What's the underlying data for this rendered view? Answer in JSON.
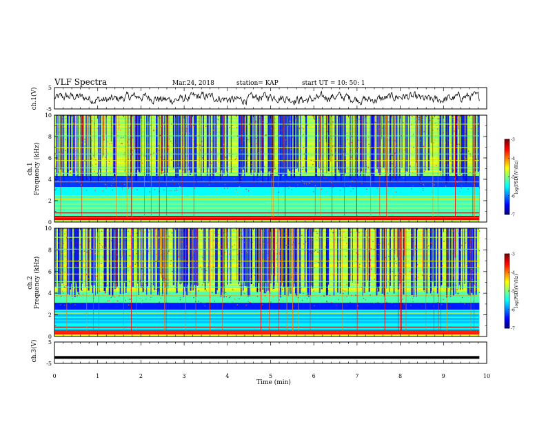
{
  "header": {
    "title": "VLF Spectra",
    "date": "Mar.24, 2018",
    "station": "station= KAP",
    "start": "start UT =  10: 50: 1"
  },
  "chart_data": {
    "type": "heatmap",
    "x": {
      "label": "Time (min)",
      "range": [
        0,
        10
      ],
      "ticks": [
        "0",
        "1",
        "2",
        "3",
        "4",
        "5",
        "6",
        "7",
        "8",
        "9",
        "10"
      ]
    },
    "panels": [
      {
        "name": "ch.1(V)",
        "type": "line",
        "ylim": [
          -5,
          5
        ],
        "yticks": [
          "5",
          "-5"
        ]
      },
      {
        "name": "ch.1",
        "ylabel": "Frequency (kHz)",
        "type": "heatmap",
        "ylim": [
          0,
          10
        ],
        "yticks": [
          "10",
          "8",
          "6",
          "4",
          "2",
          "0"
        ],
        "colorbar": {
          "label": "log(PSD)(V²/Hz)",
          "range": [
            -7,
            -3
          ],
          "ticks": [
            "-3",
            "-4",
            "-5",
            "-6",
            "-7"
          ]
        }
      },
      {
        "name": "ch.2",
        "ylabel": "Frequency (kHz)",
        "type": "heatmap",
        "ylim": [
          0,
          10
        ],
        "yticks": [
          "10",
          "8",
          "6",
          "4",
          "2",
          "0"
        ],
        "colorbar": {
          "label": "log(PSD)(V²/Hz)",
          "range": [
            -7,
            -3
          ],
          "ticks": [
            "-3",
            "-4",
            "-5",
            "-6",
            "-7"
          ]
        }
      },
      {
        "name": "ch.3(V)",
        "type": "line",
        "ylim": [
          -5,
          5
        ],
        "yticks": [
          "5",
          "-5"
        ],
        "constant_value": -2.2
      }
    ]
  },
  "labels": {
    "ch1v": "ch.1(V)",
    "ch3v": "ch.3(V)",
    "ch1": "ch.1",
    "ch2": "ch.2",
    "freq": "Frequency (kHz)",
    "cbar": "log(PSD)(V²/Hz)",
    "xlabel": "Time (min)"
  }
}
